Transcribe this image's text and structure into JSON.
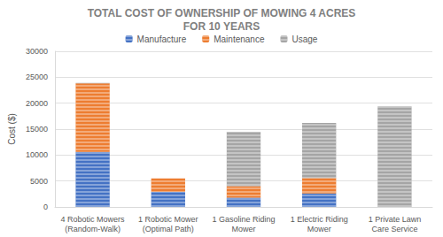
{
  "chart_data": {
    "type": "bar",
    "title": "TOTAL COST OF OWNERSHIP OF MOWING 4 ACRES\nFOR 10 YEARS",
    "y_label": "Cost ($)",
    "categories": [
      "4 Robotic Mowers\n(Random-Walk)",
      "1 Robotic Mower\n(Optimal Path)",
      "1 Gasoline Riding\nMower",
      "1 Electric Riding\nMower",
      "1 Private Lawn\nCare Service"
    ],
    "series": [
      {
        "name": "Manufacture",
        "color": "#4472c4",
        "values": [
          10600,
          2900,
          1800,
          2600,
          0
        ]
      },
      {
        "name": "Maintenance",
        "color": "#ed7d31",
        "values": [
          13200,
          2600,
          2200,
          3000,
          0
        ]
      },
      {
        "name": "Usage",
        "color": "#a5a5a5",
        "values": [
          100,
          0,
          10500,
          10600,
          19400
        ]
      }
    ],
    "ylim": [
      0,
      30000
    ],
    "yticks": [
      0,
      5000,
      10000,
      15000,
      20000,
      25000,
      30000
    ],
    "stacked": true,
    "grid": true,
    "legend": "top"
  }
}
